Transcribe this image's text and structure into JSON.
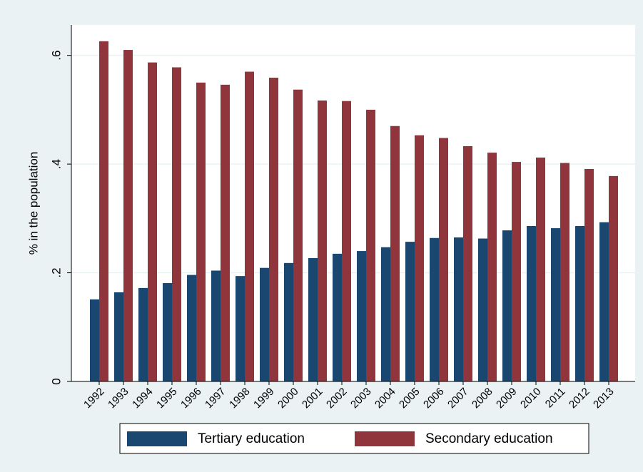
{
  "chart_data": {
    "type": "bar",
    "y_label": "% in the population",
    "categories": [
      "1992",
      "1993",
      "1994",
      "1995",
      "1996",
      "1997",
      "1998",
      "1999",
      "2000",
      "2001",
      "2002",
      "2003",
      "2004",
      "2005",
      "2006",
      "2007",
      "2008",
      "2009",
      "2010",
      "2011",
      "2012",
      "2013"
    ],
    "series": [
      {
        "name": "Tertiary education",
        "color": "#1a476f",
        "values": [
          0.151,
          0.164,
          0.172,
          0.181,
          0.196,
          0.204,
          0.194,
          0.209,
          0.218,
          0.227,
          0.235,
          0.24,
          0.247,
          0.257,
          0.264,
          0.265,
          0.263,
          0.278,
          0.286,
          0.282,
          0.286,
          0.293
        ]
      },
      {
        "name": "Secondary education",
        "color": "#90353b",
        "values": [
          0.626,
          0.61,
          0.587,
          0.578,
          0.55,
          0.546,
          0.57,
          0.559,
          0.537,
          0.517,
          0.516,
          0.5,
          0.47,
          0.453,
          0.448,
          0.433,
          0.421,
          0.404,
          0.412,
          0.402,
          0.391,
          0.378
        ]
      }
    ],
    "ylim": [
      0,
      0.656
    ],
    "yticks": [
      0,
      {
        "value": 0.2,
        "label": ".2"
      },
      {
        "value": 0.4,
        "label": ".4"
      },
      {
        "value": 0.6,
        "label": ".6"
      }
    ],
    "grid": true,
    "legend": "bottom"
  }
}
